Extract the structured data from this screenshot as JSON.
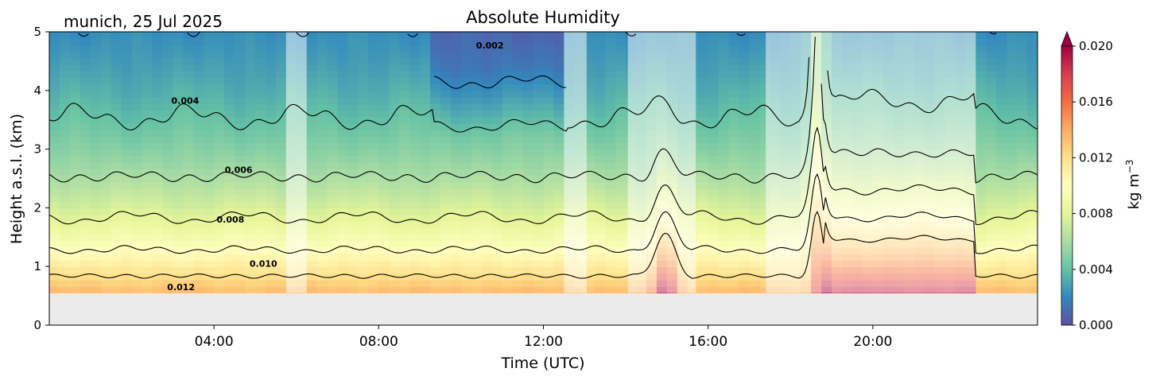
{
  "chart_data": {
    "type": "heatmap",
    "title": "Absolute Humidity",
    "location_date": "munich, 25 Jul 2025",
    "xlabel": "Time (UTC)",
    "ylabel": "Height a.s.l. (km)",
    "xlim_hours": [
      0,
      24
    ],
    "ylim_km": [
      0,
      5
    ],
    "x_ticks": [
      {
        "hour": 4,
        "label": "04:00"
      },
      {
        "hour": 8,
        "label": "08:00"
      },
      {
        "hour": 12,
        "label": "12:00"
      },
      {
        "hour": 16,
        "label": "16:00"
      },
      {
        "hour": 20,
        "label": "20:00"
      }
    ],
    "y_ticks": [
      {
        "km": 0,
        "label": "0"
      },
      {
        "km": 1,
        "label": "1"
      },
      {
        "km": 2,
        "label": "2"
      },
      {
        "km": 3,
        "label": "3"
      },
      {
        "km": 4,
        "label": "4"
      },
      {
        "km": 5,
        "label": "5"
      }
    ],
    "ground_level_km": 0.55,
    "colorbar": {
      "label": "kg m",
      "label_exponent": "−3",
      "range": [
        0.0,
        0.02
      ],
      "extend": "max",
      "colormap": [
        "#5e4fa2",
        "#3288bd",
        "#66c2a5",
        "#abdda4",
        "#e6f598",
        "#ffffbf",
        "#fee08b",
        "#fdae61",
        "#f46d43",
        "#d53e4f",
        "#9e0142"
      ],
      "ticks": [
        {
          "value": 0.0,
          "label": "0.000"
        },
        {
          "value": 0.004,
          "label": "0.004"
        },
        {
          "value": 0.008,
          "label": "0.008"
        },
        {
          "value": 0.012,
          "label": "0.012"
        },
        {
          "value": 0.016,
          "label": "0.016"
        },
        {
          "value": 0.02,
          "label": "0.020"
        }
      ]
    },
    "contour_lines": [
      {
        "value": 0.002,
        "label": "0.002",
        "label_hour": 10.7,
        "label_km": 4.77
      },
      {
        "value": 0.004,
        "label": "0.004",
        "label_hour": 3.3,
        "label_km": 3.83
      },
      {
        "value": 0.006,
        "label": "0.006",
        "label_hour": 4.6,
        "label_km": 2.65
      },
      {
        "value": 0.008,
        "label": "0.008",
        "label_hour": 4.4,
        "label_km": 1.8
      },
      {
        "value": 0.01,
        "label": "0.010",
        "label_hour": 5.2,
        "label_km": 1.05
      },
      {
        "value": 0.012,
        "label": "0.012",
        "label_hour": 3.2,
        "label_km": 0.65
      }
    ],
    "masked_time_ranges_hours": [
      [
        5.75,
        6.25
      ],
      [
        12.5,
        13.05
      ],
      [
        14.05,
        15.7
      ],
      [
        17.4,
        22.5
      ]
    ]
  }
}
